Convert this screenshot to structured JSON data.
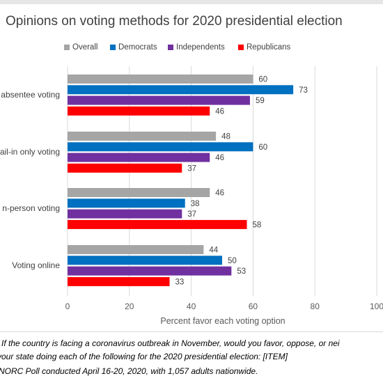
{
  "chart_data": {
    "type": "bar",
    "orientation": "horizontal",
    "title": "Opinions on voting methods for 2020 presidential election",
    "xlabel": "Percent favor each voting option",
    "ylabel": "",
    "xlim": [
      0,
      100
    ],
    "ticks": [
      "0",
      "20",
      "40",
      "60",
      "80",
      "100"
    ],
    "grid": true,
    "legend_position": "top",
    "categories": [
      "absentee voting",
      "ail-in only voting",
      "n-person voting",
      "Voting online"
    ],
    "series": [
      {
        "name": "Overall",
        "color": "#a5a5a5",
        "values": [
          60,
          48,
          46,
          44
        ]
      },
      {
        "name": "Democrats",
        "color": "#0070c0",
        "values": [
          73,
          60,
          38,
          50
        ]
      },
      {
        "name": "Independents",
        "color": "#7030a0",
        "values": [
          59,
          46,
          37,
          53
        ]
      },
      {
        "name": "Republicans",
        "color": "#ff0000",
        "values": [
          46,
          37,
          58,
          33
        ]
      }
    ]
  },
  "footnotes": {
    "line1": "If the country is facing a coronavirus outbreak in November, would you favor, oppose, or nei",
    "line2": "your state doing each of the following for the 2020 presidential election: [ITEM]",
    "line3": "-NORC Poll conducted April 16-20, 2020, with 1,057 adults nationwide."
  }
}
